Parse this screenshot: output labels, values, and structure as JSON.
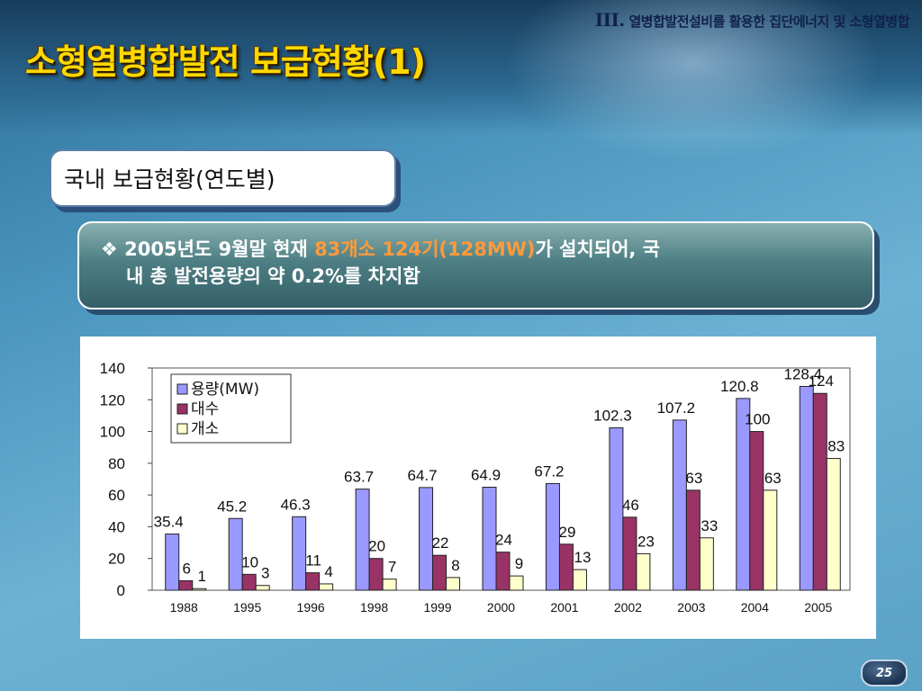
{
  "section_title_roman": "III.",
  "section_title": "열병합발전설비를 활용한 집단에너지 및 소형열병합",
  "title": "소형열병합발전 보급현황(1)",
  "subtitle": "국내 보급현황(연도별)",
  "bullet": {
    "marker": "❖",
    "text_before": "2005년도 9월말 현재 ",
    "highlight": "83개소 124기(128MW)",
    "text_after": "가  설치되어, 국",
    "line2": "내 총 발전용량의 약 0.2%를 차지함"
  },
  "page_number": "25",
  "colors": {
    "title": "#ffd800",
    "highlight": "#ff9a3a",
    "series1": "#9999ff",
    "series2": "#993366",
    "series3": "#ffffcc"
  },
  "chart_data": {
    "type": "bar",
    "categories": [
      "1988",
      "1995",
      "1996",
      "1998",
      "1999",
      "2000",
      "2001",
      "2002",
      "2003",
      "2004",
      "2005"
    ],
    "series": [
      {
        "name": "용량(MW)",
        "values": [
          35.4,
          45.2,
          46.3,
          63.7,
          64.7,
          64.9,
          67.2,
          102.3,
          107.2,
          120.8,
          128.4
        ],
        "labels": [
          "35.4",
          "45.2",
          "46.3",
          "63.7",
          "64.7",
          "64.9",
          "67.2",
          "102.3",
          "107.2",
          "120.8",
          "128.4"
        ]
      },
      {
        "name": "대수",
        "values": [
          6,
          10,
          11,
          20,
          22,
          24,
          29,
          46,
          63,
          100,
          124
        ],
        "labels": [
          "6",
          "10",
          "11",
          "20",
          "22",
          "24",
          "29",
          "46",
          "63",
          "100",
          "124"
        ]
      },
      {
        "name": "개소",
        "values": [
          1,
          3,
          4,
          7,
          8,
          9,
          13,
          23,
          33,
          63,
          83
        ],
        "labels": [
          "1",
          "3",
          "4",
          "7",
          "8",
          "9",
          "13",
          "23",
          "33",
          "63",
          "83"
        ]
      }
    ],
    "yticks": [
      "140",
      "120",
      "100",
      "80",
      "60",
      "40",
      "20",
      "0"
    ],
    "ylim": [
      0,
      140
    ],
    "grid": false,
    "legend_position": "top-left"
  }
}
